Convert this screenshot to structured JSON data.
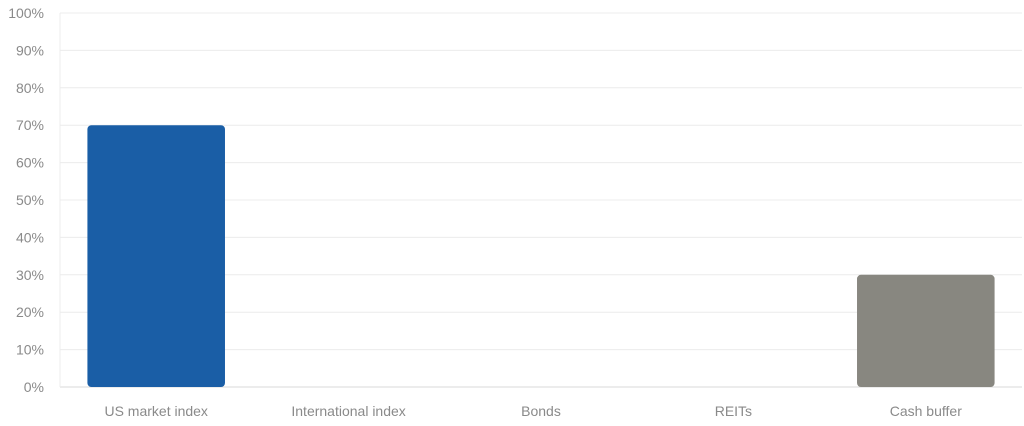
{
  "chart_data": {
    "type": "bar",
    "title": "",
    "xlabel": "",
    "ylabel": "",
    "categories": [
      "US market index",
      "International index",
      "Bonds",
      "REITs",
      "Cash buffer"
    ],
    "values": [
      70,
      0,
      0,
      0,
      30
    ],
    "bar_colors": [
      "#1a5ea6",
      "#1a5ea6",
      "#1a5ea6",
      "#1a5ea6",
      "#888780"
    ],
    "ylim": [
      0,
      100
    ],
    "yticks": [
      "0%",
      "10%",
      "20%",
      "30%",
      "40%",
      "50%",
      "60%",
      "70%",
      "80%",
      "90%",
      "100%"
    ],
    "grid": true,
    "legend": "none"
  }
}
